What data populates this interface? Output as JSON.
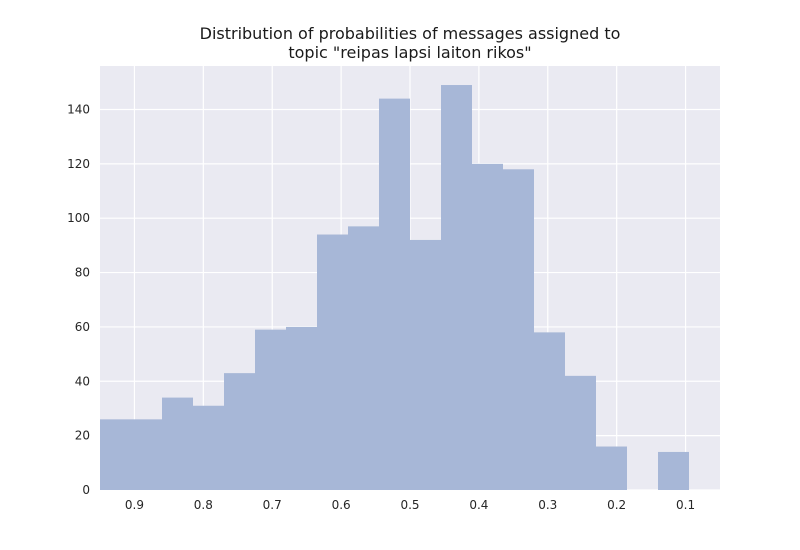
{
  "chart_data": {
    "type": "bar",
    "title_lines": [
      "Distribution of probabilities of messages assigned to",
      "topic \"reipas lapsi laiton rikos\""
    ],
    "xlabel": "",
    "ylabel": "",
    "x_reversed": true,
    "xlim": [
      0.95,
      0.05
    ],
    "ylim": [
      0,
      156
    ],
    "x_ticks": [
      0.9,
      0.8,
      0.7,
      0.6,
      0.5,
      0.4,
      0.3,
      0.2,
      0.1
    ],
    "x_tick_labels": [
      "0.9",
      "0.8",
      "0.7",
      "0.6",
      "0.5",
      "0.4",
      "0.3",
      "0.2",
      "0.1"
    ],
    "y_ticks": [
      0,
      20,
      40,
      60,
      80,
      100,
      120,
      140
    ],
    "y_tick_labels": [
      "0",
      "20",
      "40",
      "60",
      "80",
      "100",
      "120",
      "140"
    ],
    "bins": [
      {
        "x_start": 0.95,
        "x_end": 0.905,
        "count": 26
      },
      {
        "x_start": 0.905,
        "x_end": 0.86,
        "count": 26
      },
      {
        "x_start": 0.86,
        "x_end": 0.815,
        "count": 34
      },
      {
        "x_start": 0.815,
        "x_end": 0.77,
        "count": 31
      },
      {
        "x_start": 0.77,
        "x_end": 0.725,
        "count": 43
      },
      {
        "x_start": 0.725,
        "x_end": 0.68,
        "count": 59
      },
      {
        "x_start": 0.68,
        "x_end": 0.635,
        "count": 60
      },
      {
        "x_start": 0.635,
        "x_end": 0.59,
        "count": 94
      },
      {
        "x_start": 0.59,
        "x_end": 0.545,
        "count": 97
      },
      {
        "x_start": 0.545,
        "x_end": 0.5,
        "count": 144
      },
      {
        "x_start": 0.5,
        "x_end": 0.455,
        "count": 92
      },
      {
        "x_start": 0.455,
        "x_end": 0.41,
        "count": 149
      },
      {
        "x_start": 0.41,
        "x_end": 0.365,
        "count": 120
      },
      {
        "x_start": 0.365,
        "x_end": 0.32,
        "count": 118
      },
      {
        "x_start": 0.32,
        "x_end": 0.275,
        "count": 58
      },
      {
        "x_start": 0.275,
        "x_end": 0.23,
        "count": 42
      },
      {
        "x_start": 0.23,
        "x_end": 0.185,
        "count": 16
      },
      {
        "x_start": 0.185,
        "x_end": 0.14,
        "count": 0
      },
      {
        "x_start": 0.14,
        "x_end": 0.095,
        "count": 14
      }
    ],
    "grid": true,
    "colors": {
      "background": "#eaeaf2",
      "grid": "#ffffff",
      "bar": "#a7b7d7"
    }
  }
}
